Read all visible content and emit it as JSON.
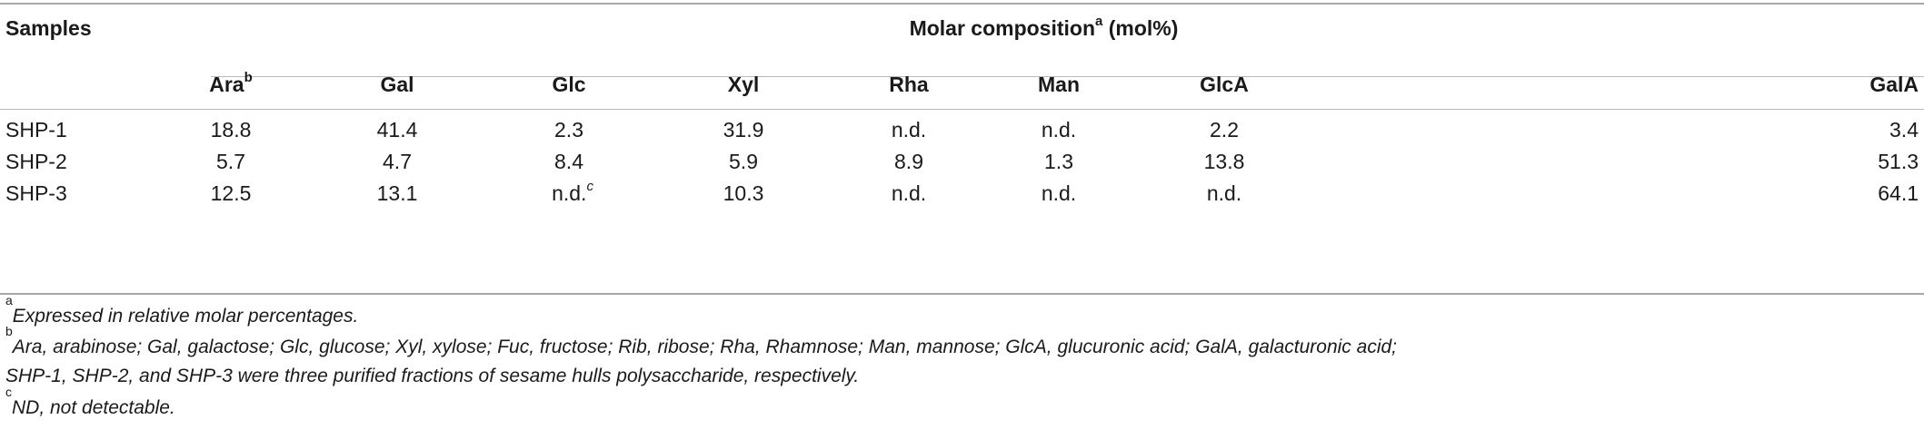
{
  "table": {
    "samples_header": "Samples",
    "group_header": "Molar composition",
    "group_header_sup": "a",
    "group_header_unit": "(mol%)",
    "columns": [
      {
        "label": "Ara",
        "sup": "b"
      },
      {
        "label": "Gal",
        "sup": ""
      },
      {
        "label": "Glc",
        "sup": ""
      },
      {
        "label": "Xyl",
        "sup": ""
      },
      {
        "label": "Rha",
        "sup": ""
      },
      {
        "label": "Man",
        "sup": ""
      },
      {
        "label": "GlcA",
        "sup": ""
      },
      {
        "label": "GalA",
        "sup": ""
      }
    ],
    "rows": [
      {
        "sample": "SHP-1",
        "values": [
          "18.8",
          "41.4",
          "2.3",
          "31.9",
          "n.d.",
          "n.d.",
          "2.2",
          "3.4"
        ]
      },
      {
        "sample": "SHP-2",
        "values": [
          "5.7",
          "4.7",
          "8.4",
          "5.9",
          "8.9",
          "1.3",
          "13.8",
          "51.3"
        ]
      },
      {
        "sample": "SHP-3",
        "values": [
          "12.5",
          "13.1",
          "n.d.",
          "10.3",
          "n.d.",
          "n.d.",
          "n.d.",
          "64.1"
        ]
      }
    ],
    "cell_sup": {
      "row": 2,
      "col": 2,
      "mark": "c"
    }
  },
  "footnotes": [
    {
      "mark": "a",
      "text": "Expressed in relative molar percentages."
    },
    {
      "mark": "b",
      "text": "Ara, arabinose; Gal, galactose; Glc, glucose; Xyl, xylose; Fuc, fructose; Rib, ribose; Rha, Rhamnose; Man, mannose; GlcA, glucuronic acid; GalA, galacturonic acid;"
    },
    {
      "mark": "",
      "text": "SHP-1, SHP-2, and SHP-3 were three purified fractions of sesame hulls polysaccharide, respectively."
    },
    {
      "mark": "c",
      "text": "ND, not detectable."
    }
  ]
}
